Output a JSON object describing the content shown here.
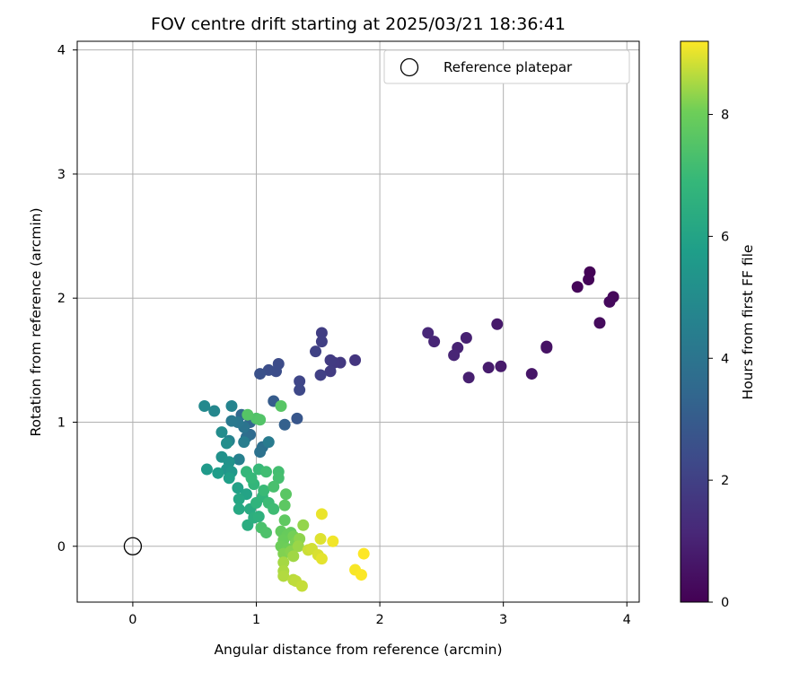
{
  "chart_data": {
    "type": "scatter",
    "title": "FOV centre drift starting at 2025/03/21 18:36:41",
    "xlabel": "Angular distance from reference (arcmin)",
    "ylabel": "Rotation from reference (arcmin)",
    "xlim": [
      -0.45,
      4.1
    ],
    "ylim": [
      -0.45,
      4.07
    ],
    "xticks": [
      0,
      1,
      2,
      3,
      4
    ],
    "yticks": [
      0,
      1,
      2,
      3,
      4
    ],
    "grid": true,
    "legend": {
      "placement": "top-right",
      "entries": [
        "Reference platepar"
      ]
    },
    "reference_point": {
      "x": 0,
      "y": 0
    },
    "colorbar": {
      "label": "Hours from first FF file",
      "range": [
        0,
        9.2
      ],
      "ticks": [
        0,
        2,
        4,
        6,
        8
      ],
      "colormap": "viridis"
    },
    "points": [
      {
        "x": 3.7,
        "y": 2.21,
        "c": 0.05
      },
      {
        "x": 3.69,
        "y": 2.15,
        "c": 0.1
      },
      {
        "x": 3.6,
        "y": 2.09,
        "c": 0.15
      },
      {
        "x": 3.89,
        "y": 2.01,
        "c": 0.2
      },
      {
        "x": 3.86,
        "y": 1.97,
        "c": 0.25
      },
      {
        "x": 3.78,
        "y": 1.8,
        "c": 0.3
      },
      {
        "x": 3.35,
        "y": 1.61,
        "c": 0.45
      },
      {
        "x": 3.35,
        "y": 1.6,
        "c": 0.5
      },
      {
        "x": 3.23,
        "y": 1.39,
        "c": 0.6
      },
      {
        "x": 2.95,
        "y": 1.79,
        "c": 0.7
      },
      {
        "x": 2.98,
        "y": 1.45,
        "c": 0.75
      },
      {
        "x": 2.88,
        "y": 1.44,
        "c": 0.8
      },
      {
        "x": 2.72,
        "y": 1.36,
        "c": 0.9
      },
      {
        "x": 2.7,
        "y": 1.68,
        "c": 0.95
      },
      {
        "x": 2.63,
        "y": 1.6,
        "c": 1.0
      },
      {
        "x": 2.6,
        "y": 1.54,
        "c": 1.05
      },
      {
        "x": 2.44,
        "y": 1.65,
        "c": 1.1
      },
      {
        "x": 2.39,
        "y": 1.72,
        "c": 1.15
      },
      {
        "x": 1.8,
        "y": 1.5,
        "c": 1.6
      },
      {
        "x": 1.68,
        "y": 1.48,
        "c": 1.7
      },
      {
        "x": 1.63,
        "y": 1.48,
        "c": 1.75
      },
      {
        "x": 1.6,
        "y": 1.5,
        "c": 1.8
      },
      {
        "x": 1.6,
        "y": 1.41,
        "c": 1.85
      },
      {
        "x": 1.53,
        "y": 1.72,
        "c": 1.9
      },
      {
        "x": 1.53,
        "y": 1.65,
        "c": 1.95
      },
      {
        "x": 1.52,
        "y": 1.38,
        "c": 2.0
      },
      {
        "x": 1.48,
        "y": 1.57,
        "c": 2.05
      },
      {
        "x": 1.35,
        "y": 1.33,
        "c": 2.2
      },
      {
        "x": 1.35,
        "y": 1.26,
        "c": 2.25
      },
      {
        "x": 1.18,
        "y": 1.47,
        "c": 2.4
      },
      {
        "x": 1.16,
        "y": 1.41,
        "c": 2.45
      },
      {
        "x": 1.1,
        "y": 1.42,
        "c": 2.5
      },
      {
        "x": 1.03,
        "y": 1.39,
        "c": 2.6
      },
      {
        "x": 1.33,
        "y": 1.03,
        "c": 2.8
      },
      {
        "x": 1.14,
        "y": 1.17,
        "c": 3.0
      },
      {
        "x": 1.23,
        "y": 0.98,
        "c": 3.2
      },
      {
        "x": 0.95,
        "y": 1.0,
        "c": 3.4
      },
      {
        "x": 0.88,
        "y": 1.06,
        "c": 3.5
      },
      {
        "x": 0.95,
        "y": 0.9,
        "c": 3.6
      },
      {
        "x": 0.92,
        "y": 0.88,
        "c": 3.7
      },
      {
        "x": 1.05,
        "y": 0.8,
        "c": 3.8
      },
      {
        "x": 1.03,
        "y": 0.76,
        "c": 3.9
      },
      {
        "x": 0.9,
        "y": 0.96,
        "c": 4.0
      },
      {
        "x": 0.85,
        "y": 1.0,
        "c": 4.1
      },
      {
        "x": 0.8,
        "y": 1.01,
        "c": 4.2
      },
      {
        "x": 1.1,
        "y": 0.84,
        "c": 4.3
      },
      {
        "x": 0.9,
        "y": 0.84,
        "c": 4.4
      },
      {
        "x": 0.86,
        "y": 0.7,
        "c": 4.5
      },
      {
        "x": 0.78,
        "y": 0.85,
        "c": 4.6
      },
      {
        "x": 0.8,
        "y": 1.13,
        "c": 4.7
      },
      {
        "x": 0.66,
        "y": 1.09,
        "c": 4.8
      },
      {
        "x": 0.58,
        "y": 1.13,
        "c": 4.9
      },
      {
        "x": 0.72,
        "y": 0.92,
        "c": 5.0
      },
      {
        "x": 0.76,
        "y": 0.83,
        "c": 5.1
      },
      {
        "x": 0.72,
        "y": 0.72,
        "c": 5.2
      },
      {
        "x": 0.78,
        "y": 0.68,
        "c": 5.3
      },
      {
        "x": 0.76,
        "y": 0.62,
        "c": 5.4
      },
      {
        "x": 0.8,
        "y": 0.6,
        "c": 5.5
      },
      {
        "x": 0.6,
        "y": 0.62,
        "c": 5.6
      },
      {
        "x": 0.69,
        "y": 0.59,
        "c": 5.7
      },
      {
        "x": 0.78,
        "y": 0.55,
        "c": 5.8
      },
      {
        "x": 0.85,
        "y": 0.47,
        "c": 5.9
      },
      {
        "x": 0.92,
        "y": 0.42,
        "c": 6.0
      },
      {
        "x": 0.86,
        "y": 0.38,
        "c": 6.1
      },
      {
        "x": 0.86,
        "y": 0.3,
        "c": 6.2
      },
      {
        "x": 0.95,
        "y": 0.3,
        "c": 6.3
      },
      {
        "x": 0.93,
        "y": 0.17,
        "c": 6.4
      },
      {
        "x": 0.98,
        "y": 0.23,
        "c": 6.5
      },
      {
        "x": 1.02,
        "y": 0.24,
        "c": 6.6
      },
      {
        "x": 1.0,
        "y": 0.35,
        "c": 6.7
      },
      {
        "x": 1.05,
        "y": 0.4,
        "c": 6.75
      },
      {
        "x": 0.98,
        "y": 0.5,
        "c": 6.8
      },
      {
        "x": 0.92,
        "y": 0.6,
        "c": 6.85
      },
      {
        "x": 0.96,
        "y": 0.55,
        "c": 6.9
      },
      {
        "x": 1.02,
        "y": 0.62,
        "c": 6.95
      },
      {
        "x": 1.06,
        "y": 0.45,
        "c": 7.0
      },
      {
        "x": 1.1,
        "y": 0.35,
        "c": 7.05
      },
      {
        "x": 1.14,
        "y": 0.3,
        "c": 7.1
      },
      {
        "x": 1.08,
        "y": 0.6,
        "c": 7.15
      },
      {
        "x": 1.18,
        "y": 0.6,
        "c": 7.2
      },
      {
        "x": 1.18,
        "y": 0.55,
        "c": 7.25
      },
      {
        "x": 1.14,
        "y": 0.48,
        "c": 7.3
      },
      {
        "x": 1.04,
        "y": 0.15,
        "c": 7.35
      },
      {
        "x": 1.08,
        "y": 0.11,
        "c": 7.4
      },
      {
        "x": 1.0,
        "y": 1.03,
        "c": 7.45
      },
      {
        "x": 1.03,
        "y": 1.02,
        "c": 7.5
      },
      {
        "x": 0.93,
        "y": 1.06,
        "c": 7.55
      },
      {
        "x": 1.2,
        "y": 1.13,
        "c": 7.6
      },
      {
        "x": 1.24,
        "y": 0.42,
        "c": 7.65
      },
      {
        "x": 1.23,
        "y": 0.33,
        "c": 7.7
      },
      {
        "x": 1.23,
        "y": 0.21,
        "c": 7.75
      },
      {
        "x": 1.2,
        "y": 0.12,
        "c": 7.8
      },
      {
        "x": 1.28,
        "y": 0.11,
        "c": 7.85
      },
      {
        "x": 1.25,
        "y": 0.09,
        "c": 7.9
      },
      {
        "x": 1.22,
        "y": 0.05,
        "c": 7.95
      },
      {
        "x": 1.2,
        "y": 0.0,
        "c": 8.0
      },
      {
        "x": 1.25,
        "y": -0.02,
        "c": 8.05
      },
      {
        "x": 1.3,
        "y": 0.08,
        "c": 8.1
      },
      {
        "x": 1.32,
        "y": 0.03,
        "c": 8.15
      },
      {
        "x": 1.22,
        "y": -0.06,
        "c": 8.2
      },
      {
        "x": 1.28,
        "y": -0.04,
        "c": 8.25
      },
      {
        "x": 1.35,
        "y": 0.06,
        "c": 8.3
      },
      {
        "x": 1.38,
        "y": 0.17,
        "c": 8.35
      },
      {
        "x": 1.34,
        "y": 0.0,
        "c": 8.4
      },
      {
        "x": 1.3,
        "y": -0.08,
        "c": 8.45
      },
      {
        "x": 1.22,
        "y": -0.13,
        "c": 8.5
      },
      {
        "x": 1.22,
        "y": -0.2,
        "c": 8.55
      },
      {
        "x": 1.22,
        "y": -0.24,
        "c": 8.6
      },
      {
        "x": 1.3,
        "y": -0.27,
        "c": 8.65
      },
      {
        "x": 1.32,
        "y": -0.28,
        "c": 8.7
      },
      {
        "x": 1.37,
        "y": -0.32,
        "c": 8.75
      },
      {
        "x": 1.42,
        "y": -0.03,
        "c": 8.8
      },
      {
        "x": 1.45,
        "y": -0.02,
        "c": 8.85
      },
      {
        "x": 1.5,
        "y": -0.07,
        "c": 8.9
      },
      {
        "x": 1.52,
        "y": 0.06,
        "c": 8.95
      },
      {
        "x": 1.53,
        "y": -0.1,
        "c": 9.0
      },
      {
        "x": 1.53,
        "y": 0.26,
        "c": 9.05
      },
      {
        "x": 1.62,
        "y": 0.04,
        "c": 9.1
      },
      {
        "x": 1.8,
        "y": -0.19,
        "c": 9.15
      },
      {
        "x": 1.85,
        "y": -0.23,
        "c": 9.18
      },
      {
        "x": 1.87,
        "y": -0.06,
        "c": 9.2
      }
    ]
  }
}
